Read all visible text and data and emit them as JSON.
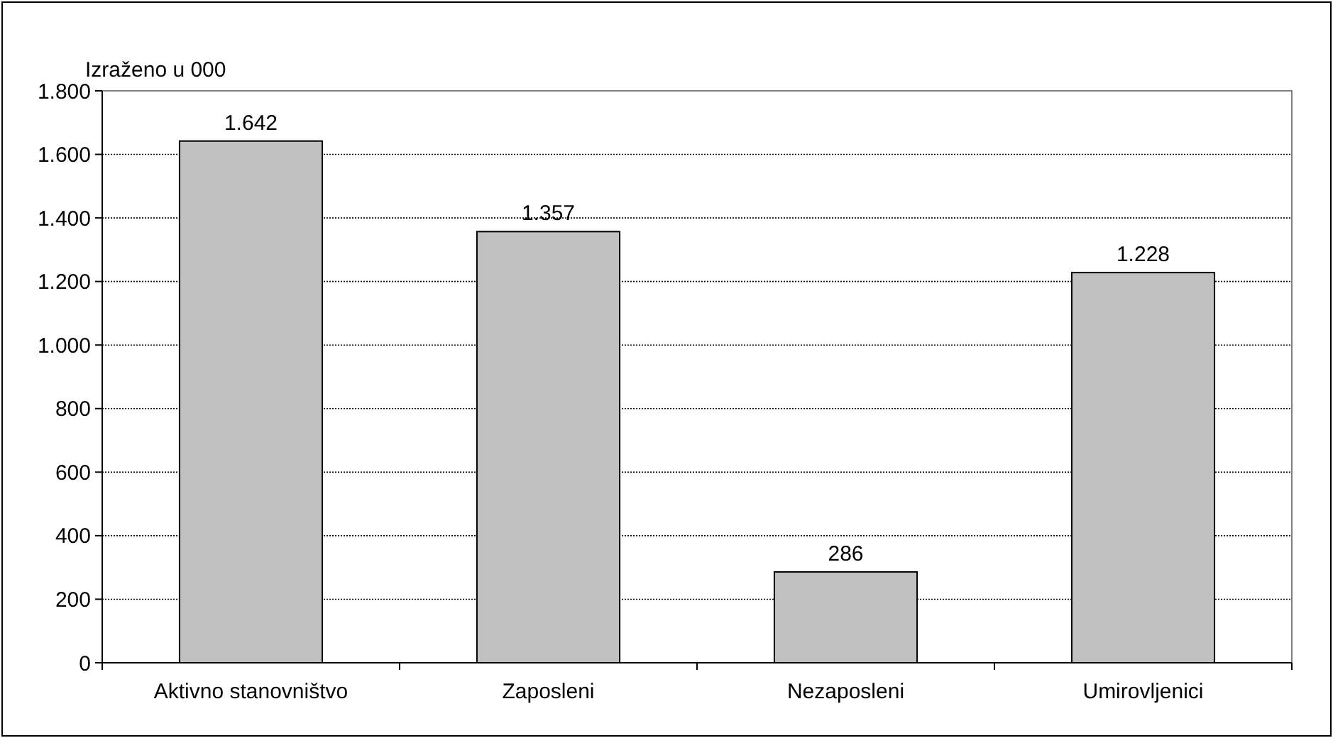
{
  "chart_data": {
    "type": "bar",
    "ylabel": "Izraženo u 000",
    "categories": [
      "Aktivno stanovništvo",
      "Zaposleni",
      "Nezaposleni",
      "Umirovljenici"
    ],
    "values": [
      1642,
      1357,
      286,
      1228
    ],
    "color": "#c0c0c0",
    "value_labels": [
      "1.642",
      "1.357",
      "286",
      "1.228"
    ],
    "ylim": [
      0,
      1800
    ],
    "yticks": [
      0,
      200,
      400,
      600,
      800,
      {
        "value": 1000,
        "label": "1.000"
      },
      {
        "value": 1200,
        "label": "1.200"
      },
      {
        "value": 1400,
        "label": "1.400"
      },
      {
        "value": 1600,
        "label": "1.600"
      },
      {
        "value": 1800,
        "label": "1.800"
      }
    ],
    "grid": "y"
  }
}
